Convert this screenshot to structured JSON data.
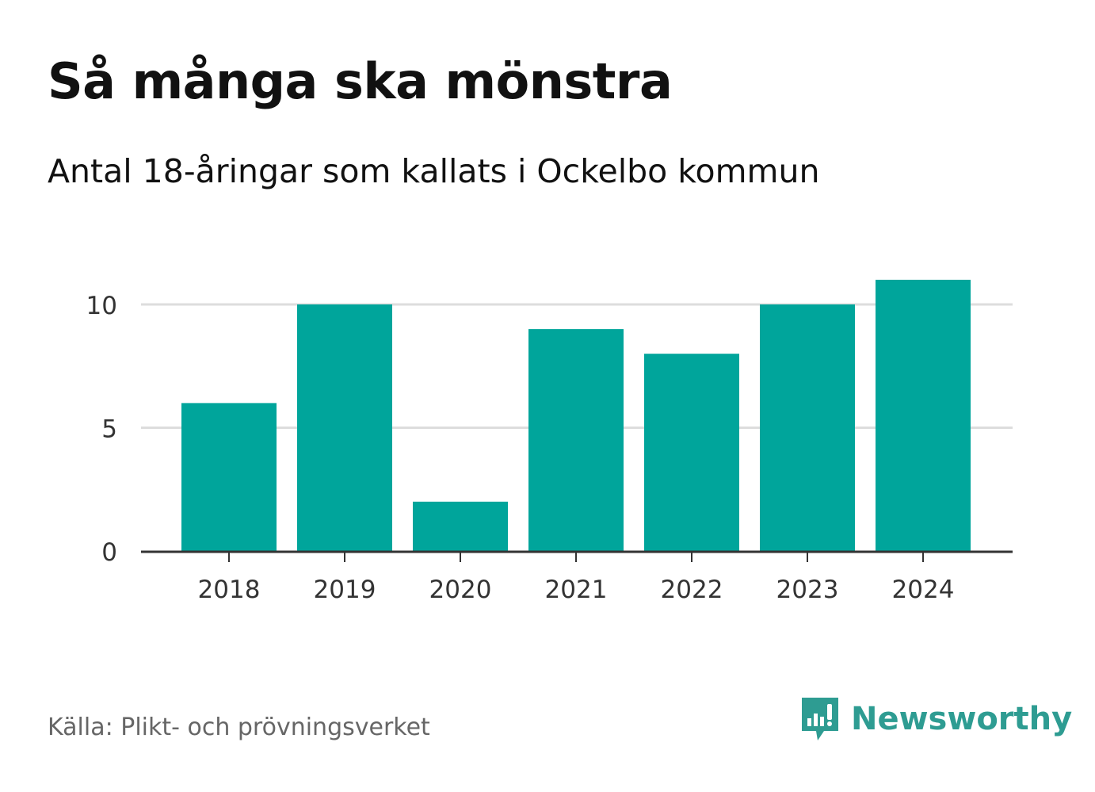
{
  "title": "Så många ska mönstra",
  "subtitle": "Antal 18-åringar som kallats i Ockelbo kommun",
  "source": "Källa: Plikt- och prövningsverket",
  "brand": {
    "name": "Newsworthy",
    "icon": "newsworthy-logo-icon"
  },
  "colors": {
    "bar": "#00a59b",
    "grid": "#dddddd",
    "axis": "#333333",
    "brand": "#2e9c92"
  },
  "chart_data": {
    "type": "bar",
    "categories": [
      "2018",
      "2019",
      "2020",
      "2021",
      "2022",
      "2023",
      "2024"
    ],
    "values": [
      6,
      10,
      2,
      9,
      8,
      10,
      11
    ],
    "yticks": [
      0,
      5,
      10
    ],
    "ylim": [
      0,
      11
    ],
    "xlabel": "",
    "ylabel": "",
    "grid": true
  }
}
